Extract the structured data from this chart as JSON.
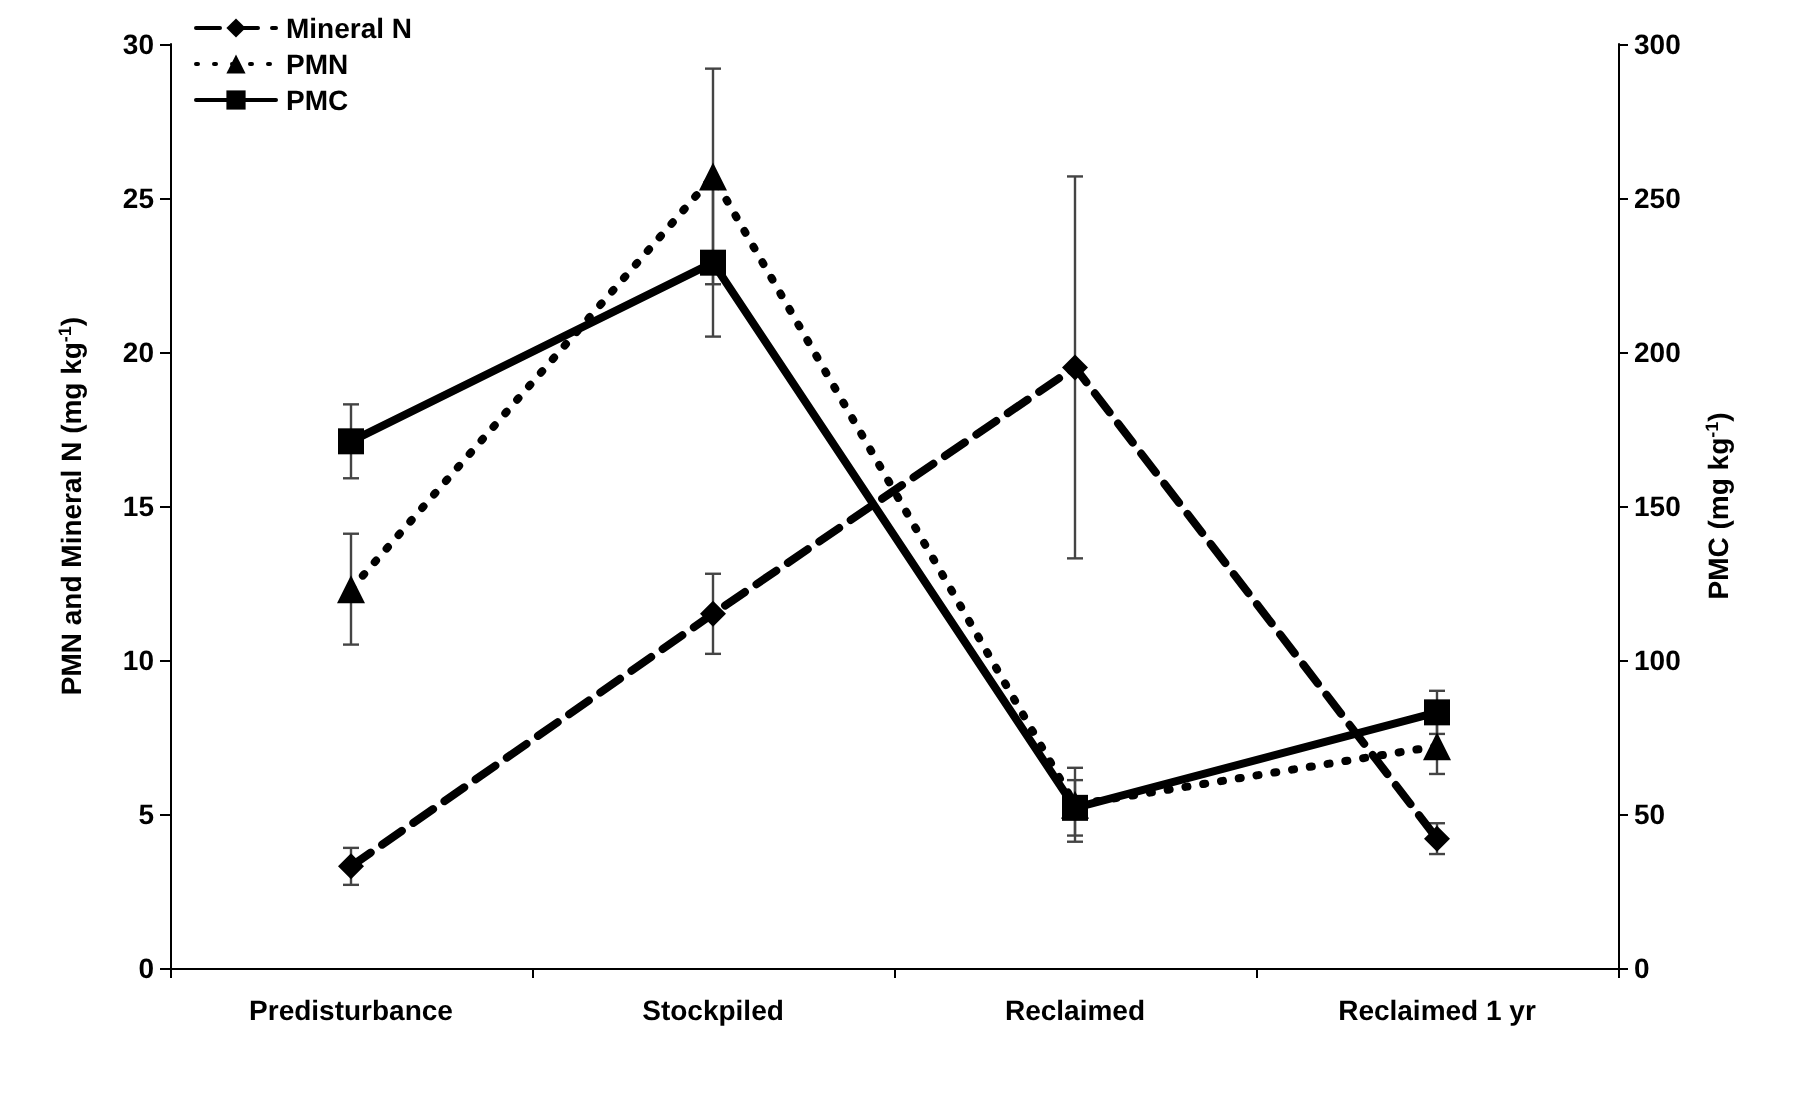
{
  "chart_data": {
    "type": "line",
    "categories": [
      "Predisturbance",
      "Stockpiled",
      "Reclaimed",
      "Reclaimed 1 yr"
    ],
    "ylabel": "PMN and Mineral N (mg kg$^{-1}$)",
    "y2label": "PMC (mg kg$^{-1}$)",
    "ylim": [
      0,
      30
    ],
    "yticks": [
      0,
      5,
      10,
      15,
      20,
      25,
      30
    ],
    "y2lim": [
      0,
      300
    ],
    "y2ticks": [
      0,
      50,
      100,
      150,
      200,
      250,
      300
    ],
    "grid": false,
    "legend": "top left",
    "series": [
      {
        "name": "Mineral N",
        "color": "#000000",
        "marker": "diamond",
        "line_style": "dashed",
        "values": [
          3.3,
          11.5,
          19.5,
          4.2
        ],
        "errors": [
          0.6,
          1.3,
          6.2,
          0.5
        ]
      },
      {
        "name": "PMN",
        "color": "#000000",
        "marker": "triangle",
        "line_style": "dotted",
        "values": [
          12.3,
          25.7,
          5.3,
          7.2
        ],
        "errors": [
          1.8,
          3.5,
          1.2,
          0.9
        ]
      },
      {
        "name": "PMC",
        "color": "#000000",
        "marker": "square",
        "line_style": "solid",
        "axis": "y2",
        "values": [
          171,
          229,
          52,
          83
        ],
        "errors": [
          12,
          24,
          9,
          7
        ]
      }
    ]
  }
}
